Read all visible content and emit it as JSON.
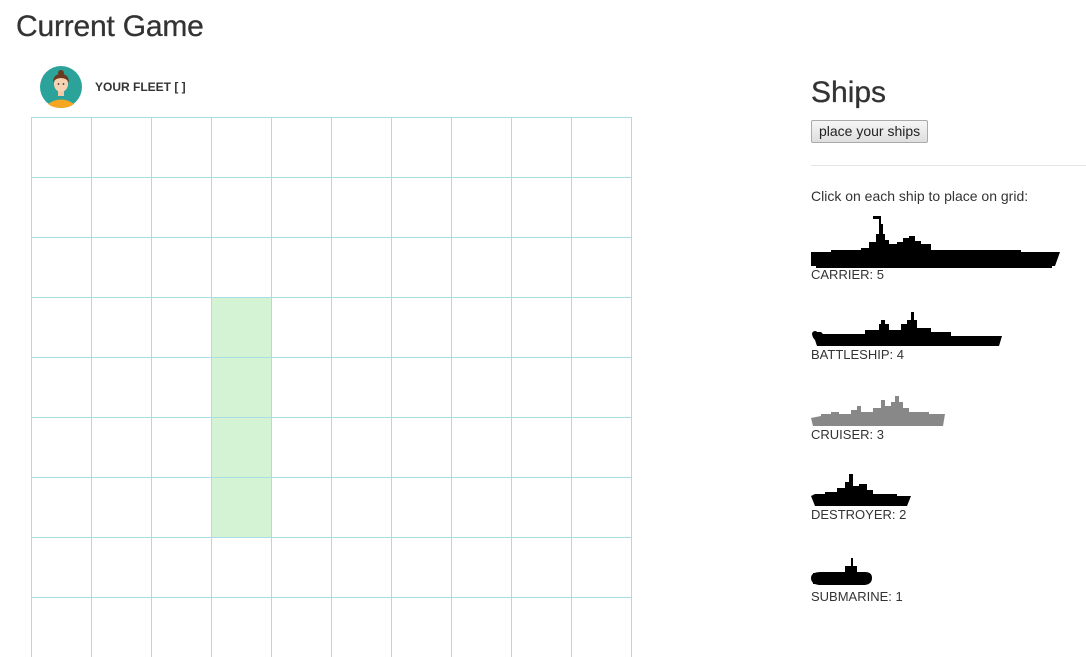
{
  "page": {
    "title": "Current Game"
  },
  "fleet": {
    "label": "YOUR FLEET [ ]"
  },
  "grid": {
    "columns": 10,
    "visible_rows": 9,
    "highlighted_cells": [
      [
        3,
        3
      ],
      [
        4,
        3
      ],
      [
        5,
        3
      ],
      [
        6,
        3
      ]
    ]
  },
  "colors": {
    "grid_line": "#a8dde3",
    "highlight": "#d4f3d4",
    "ship": "#000000",
    "ship_selected": "#888888"
  },
  "ships_panel": {
    "title": "Ships",
    "place_button": "place your ships",
    "instructions": "Click on each ship to place on grid:",
    "ships": [
      {
        "label": "CARRIER: 5",
        "icon": "carrier-silhouette-icon",
        "selected": false
      },
      {
        "label": "BATTLESHIP: 4",
        "icon": "battleship-silhouette-icon",
        "selected": false
      },
      {
        "label": "CRUISER: 3",
        "icon": "cruiser-silhouette-icon",
        "selected": true
      },
      {
        "label": "DESTROYER: 2",
        "icon": "destroyer-silhouette-icon",
        "selected": false
      },
      {
        "label": "SUBMARINE: 1",
        "icon": "submarine-silhouette-icon",
        "selected": false
      }
    ]
  }
}
